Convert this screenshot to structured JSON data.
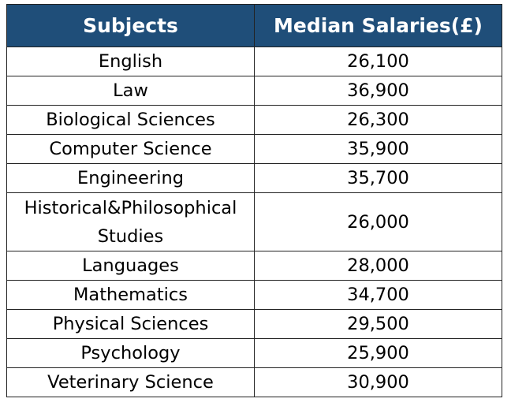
{
  "chart_data": {
    "type": "table",
    "columns": [
      "Subjects",
      "Median Salaries(£)"
    ],
    "rows": [
      [
        "English",
        "26,100"
      ],
      [
        "Law",
        "36,900"
      ],
      [
        "Biological Sciences",
        "26,300"
      ],
      [
        "Computer Science",
        "35,900"
      ],
      [
        "Engineering",
        "35,700"
      ],
      [
        "Historical&Philosophical Studies",
        "26,000"
      ],
      [
        "Languages",
        "28,000"
      ],
      [
        "Mathematics",
        "34,700"
      ],
      [
        "Physical Sciences",
        "29,500"
      ],
      [
        "Psychology",
        "25,900"
      ],
      [
        "Veterinary Science",
        "30,900"
      ]
    ],
    "header_color": "#1f4e79"
  }
}
